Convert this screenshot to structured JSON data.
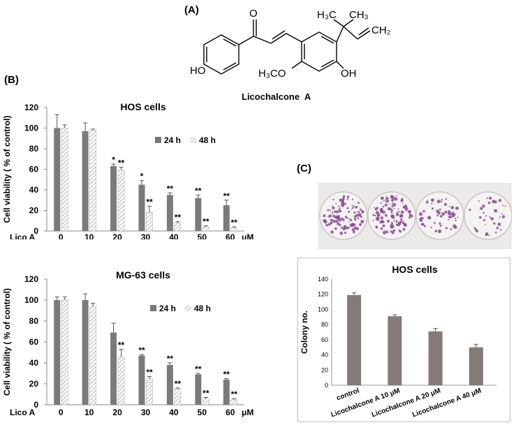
{
  "panels": {
    "a_label": "(A)",
    "b_label": "(B)",
    "c_label": "(C)"
  },
  "structure": {
    "name": "Licochalcone  A",
    "atoms": {
      "o_top": "O",
      "ho_left": "HO",
      "h3co": "H₃CO",
      "oh_right": "OH",
      "h3c": "H₃C",
      "ch3": "CH₃",
      "ch2": "CH₂"
    }
  },
  "colors": {
    "bar_24h": "#7a7a7a",
    "bar_48h_stroke": "#a6a6a6",
    "colony_bar": "#847a77",
    "colony_plate": "#8e4a94"
  },
  "chart_data": [
    {
      "type": "bar",
      "title": "HOS cells",
      "ylabel": "Cell viability ( % of control)",
      "x_prefix": "Lico A",
      "x_unit": "μM",
      "categories": [
        "0",
        "10",
        "20",
        "30",
        "40",
        "50",
        "60"
      ],
      "ylim": [
        0,
        120
      ],
      "yticks": [
        "0",
        "20",
        "40",
        "60",
        "80",
        "100",
        "120"
      ],
      "legend_position": "top-right",
      "series": [
        {
          "name": "24 h",
          "values": [
            100,
            97,
            63,
            45,
            35,
            32,
            25
          ],
          "errors": [
            13,
            8,
            2,
            4,
            2,
            3,
            5
          ],
          "sig": [
            "",
            "",
            "*",
            "*",
            "**",
            "**",
            "**"
          ]
        },
        {
          "name": "48 h",
          "values": [
            100,
            98,
            59,
            18,
            8,
            4,
            3
          ],
          "errors": [
            3,
            1,
            3,
            6,
            1,
            1,
            1
          ],
          "sig": [
            "",
            "",
            "**",
            "**",
            "**",
            "**",
            "**"
          ]
        }
      ]
    },
    {
      "type": "bar",
      "title": "MG-63 cells",
      "ylabel": "Cell viability ( % of control)",
      "x_prefix": "Lico A",
      "x_unit": "μM",
      "categories": [
        "0",
        "10",
        "20",
        "30",
        "40",
        "50",
        "60"
      ],
      "ylim": [
        0,
        120
      ],
      "yticks": [
        "0",
        "20",
        "40",
        "60",
        "80",
        "100",
        "120"
      ],
      "legend_position": "top-right",
      "series": [
        {
          "name": "24 h",
          "values": [
            100,
            100,
            69,
            47,
            38,
            29,
            24
          ],
          "errors": [
            3,
            6,
            9,
            1,
            2,
            1,
            1
          ],
          "sig": [
            "",
            "",
            "",
            "**",
            "**",
            "**",
            "**"
          ]
        },
        {
          "name": "48 h",
          "values": [
            100,
            94,
            46,
            25,
            15,
            6,
            5
          ],
          "errors": [
            3,
            3,
            7,
            2,
            1,
            1,
            1
          ],
          "sig": [
            "",
            "",
            "**",
            "**",
            "**",
            "**",
            "**"
          ]
        }
      ]
    },
    {
      "type": "bar",
      "title": "HOS cells",
      "ylabel": "Colony no.",
      "categories": [
        "control",
        "Licochalcone A 10 μM",
        "Licochalcone A 20 μM",
        "Licochalcone A 40 μM"
      ],
      "ylim": [
        0,
        140
      ],
      "yticks": [
        "0",
        "20",
        "40",
        "60",
        "80",
        "100",
        "120",
        "140"
      ],
      "series": [
        {
          "values": [
            119,
            91,
            71,
            50
          ],
          "errors": [
            3,
            2,
            4,
            4
          ]
        }
      ]
    }
  ]
}
